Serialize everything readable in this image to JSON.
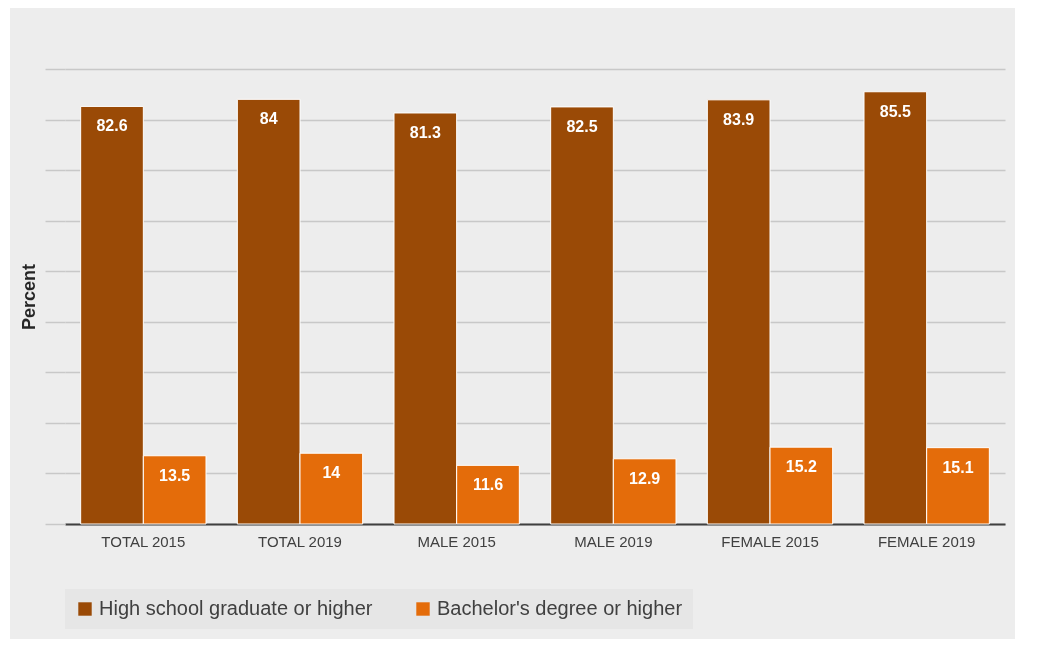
{
  "chart_data": {
    "type": "bar",
    "ylabel": "Percent",
    "categories": [
      "TOTAL 2015",
      "TOTAL 2019",
      "MALE 2015",
      "MALE 2019",
      "FEMALE 2015",
      "FEMALE 2019"
    ],
    "series": [
      {
        "name": "High school graduate or higher",
        "color": "#9a4a06",
        "values": [
          82.6,
          84,
          81.3,
          82.5,
          83.9,
          85.5
        ]
      },
      {
        "name": "Bachelor's degree or higher",
        "color": "#e46c0a",
        "values": [
          13.5,
          14,
          11.6,
          12.9,
          15.2,
          15.1
        ]
      }
    ],
    "ylim": [
      0,
      90
    ],
    "yticks": [
      {
        "value": 0,
        "label": null
      },
      {
        "value": 10,
        "label": null
      },
      {
        "value": 20,
        "label": null
      },
      {
        "value": 30,
        "label": null
      },
      {
        "value": 40,
        "label": null
      },
      {
        "value": 50,
        "label": null
      },
      {
        "value": 60,
        "label": null
      },
      {
        "value": 70,
        "label": null
      },
      {
        "value": 80,
        "label": null
      },
      {
        "value": 90,
        "label": null
      }
    ],
    "tick_labels": "x",
    "grid": "y",
    "data_labels": true,
    "legend": "bottom"
  }
}
